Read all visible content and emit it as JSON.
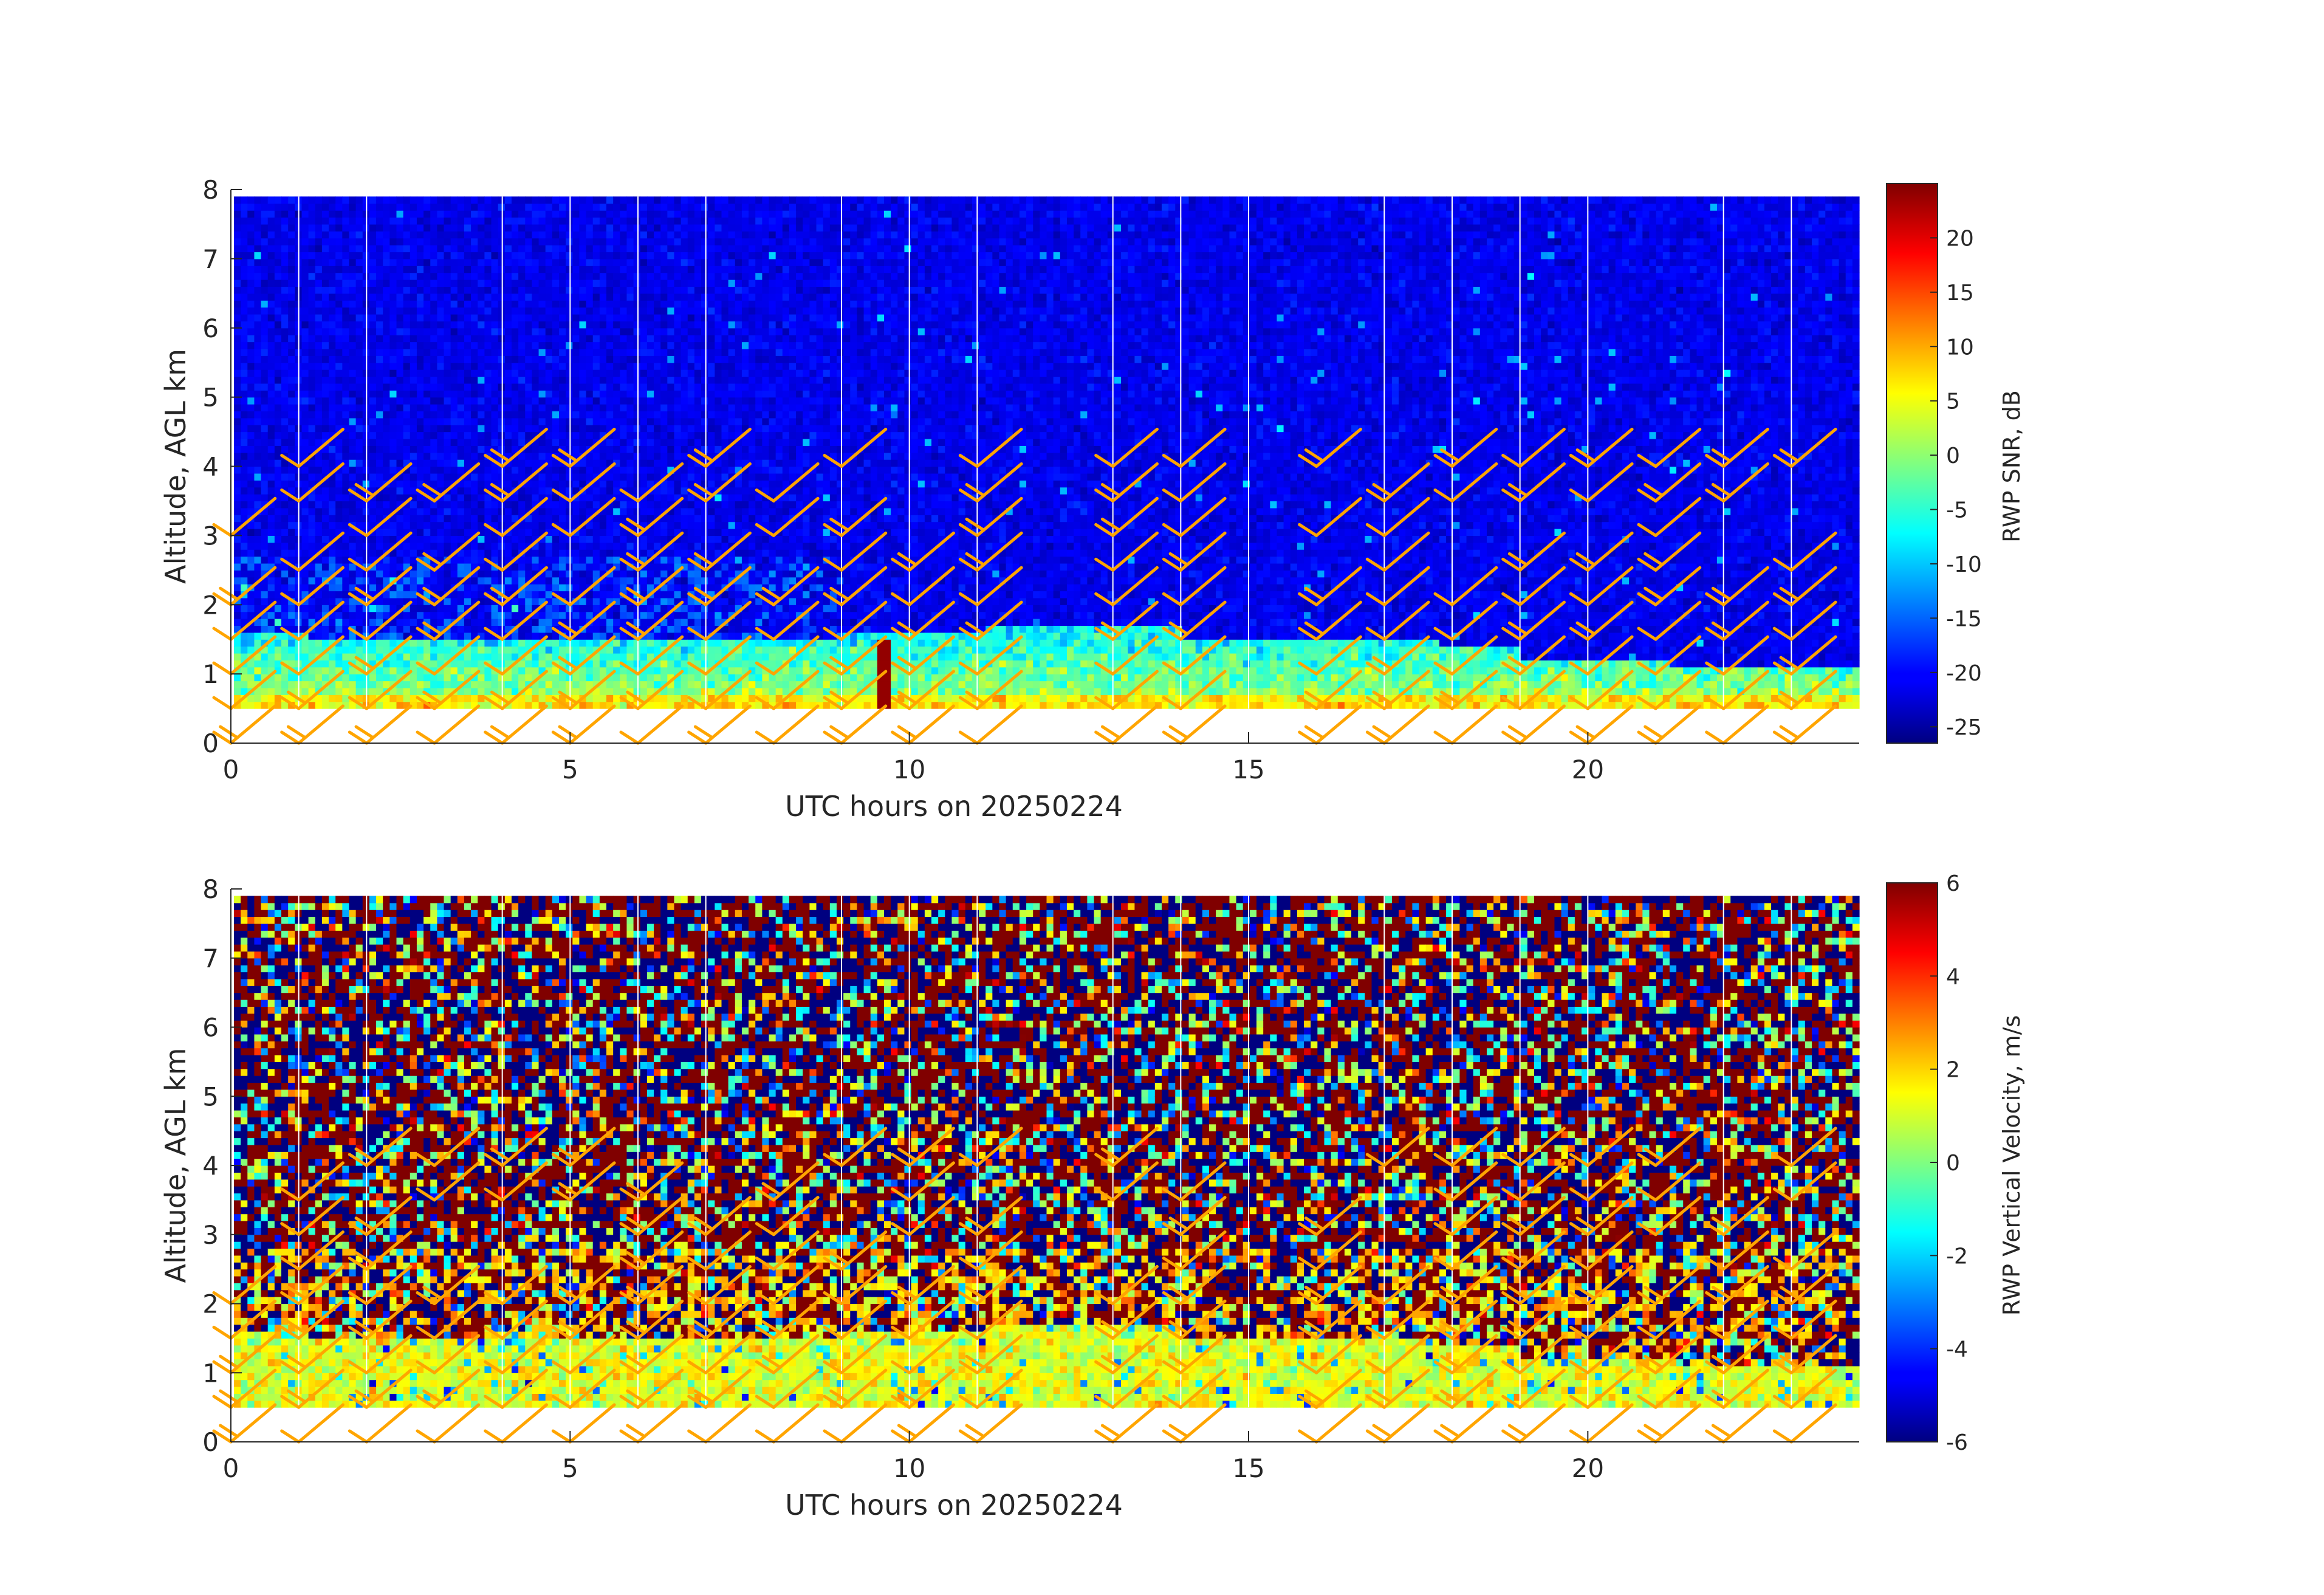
{
  "chart_data": [
    {
      "type": "heatmap",
      "xlabel": "UTC hours on 20250224",
      "ylabel": "Altitude, AGL km",
      "xlim": [
        0,
        24
      ],
      "ylim": [
        0,
        8
      ],
      "xticks": [
        0,
        5,
        10,
        15,
        20
      ],
      "yticks": [
        0,
        1,
        2,
        3,
        4,
        5,
        6,
        7,
        8
      ],
      "grid": false,
      "vertical_lines_hours": [
        1,
        2,
        4,
        5,
        6,
        7,
        9,
        10,
        11,
        13,
        14,
        15,
        17,
        18,
        19,
        20,
        22,
        23
      ],
      "data_range_km": [
        0.5,
        7.9
      ],
      "colorbar": {
        "label": "RWP SNR, dB",
        "colormap": "jet",
        "range": [
          -26.5,
          25
        ],
        "ticks": [
          20,
          15,
          10,
          5,
          0,
          -5,
          -10,
          -15,
          -20,
          -25
        ]
      },
      "features": [
        {
          "desc_hours": [
            0,
            24
          ],
          "alt_km": [
            0.5,
            1.6
          ],
          "snr_db_approx": [
            -10,
            5
          ]
        },
        {
          "desc_hours": [
            9.5,
            9.7
          ],
          "alt_km": [
            0.5,
            1.5
          ],
          "snr_db_approx": 25
        }
      ],
      "wind_barbs": {
        "color": "#ffa500",
        "hours": [
          0,
          1,
          2,
          3,
          4,
          5,
          6,
          7,
          8,
          9,
          10,
          11,
          13,
          14,
          16,
          17,
          18,
          19,
          20,
          21,
          22,
          23
        ],
        "altitudes_km": [
          0,
          0.5,
          1,
          1.5,
          2,
          2.5,
          3,
          3.5,
          4
        ]
      }
    },
    {
      "type": "heatmap",
      "xlabel": "UTC hours on 20250224",
      "ylabel": "Altitude, AGL km",
      "xlim": [
        0,
        24
      ],
      "ylim": [
        0,
        8
      ],
      "xticks": [
        0,
        5,
        10,
        15,
        20
      ],
      "yticks": [
        0,
        1,
        2,
        3,
        4,
        5,
        6,
        7,
        8
      ],
      "grid": false,
      "vertical_lines_hours": [
        1,
        2,
        4,
        5,
        6,
        7,
        9,
        10,
        11,
        13,
        14,
        15,
        17,
        18,
        19,
        20,
        22,
        23
      ],
      "data_range_km": [
        0.5,
        7.9
      ],
      "colorbar": {
        "label": "RWP Vertical Velocity, m/s",
        "colormap": "jet",
        "range": [
          -6,
          6
        ],
        "ticks": [
          6,
          4,
          2,
          0,
          -2,
          -4,
          -6
        ]
      },
      "features": [
        {
          "desc_hours": [
            0,
            24
          ],
          "alt_km": [
            0.5,
            1.6
          ],
          "velocity_ms_approx": [
            0,
            2
          ]
        },
        {
          "desc_hours": [
            0,
            24
          ],
          "alt_km": [
            1.6,
            7.9
          ],
          "velocity_ms_approx": "noisy, -6 to 6"
        }
      ],
      "wind_barbs": {
        "color": "#ffa500",
        "hours": [
          0,
          1,
          2,
          3,
          4,
          5,
          6,
          7,
          8,
          9,
          10,
          11,
          13,
          14,
          16,
          17,
          18,
          19,
          20,
          21,
          22,
          23
        ],
        "altitudes_km": [
          0,
          0.5,
          1,
          1.5,
          2,
          2.5,
          3,
          3.5,
          4
        ]
      }
    }
  ]
}
